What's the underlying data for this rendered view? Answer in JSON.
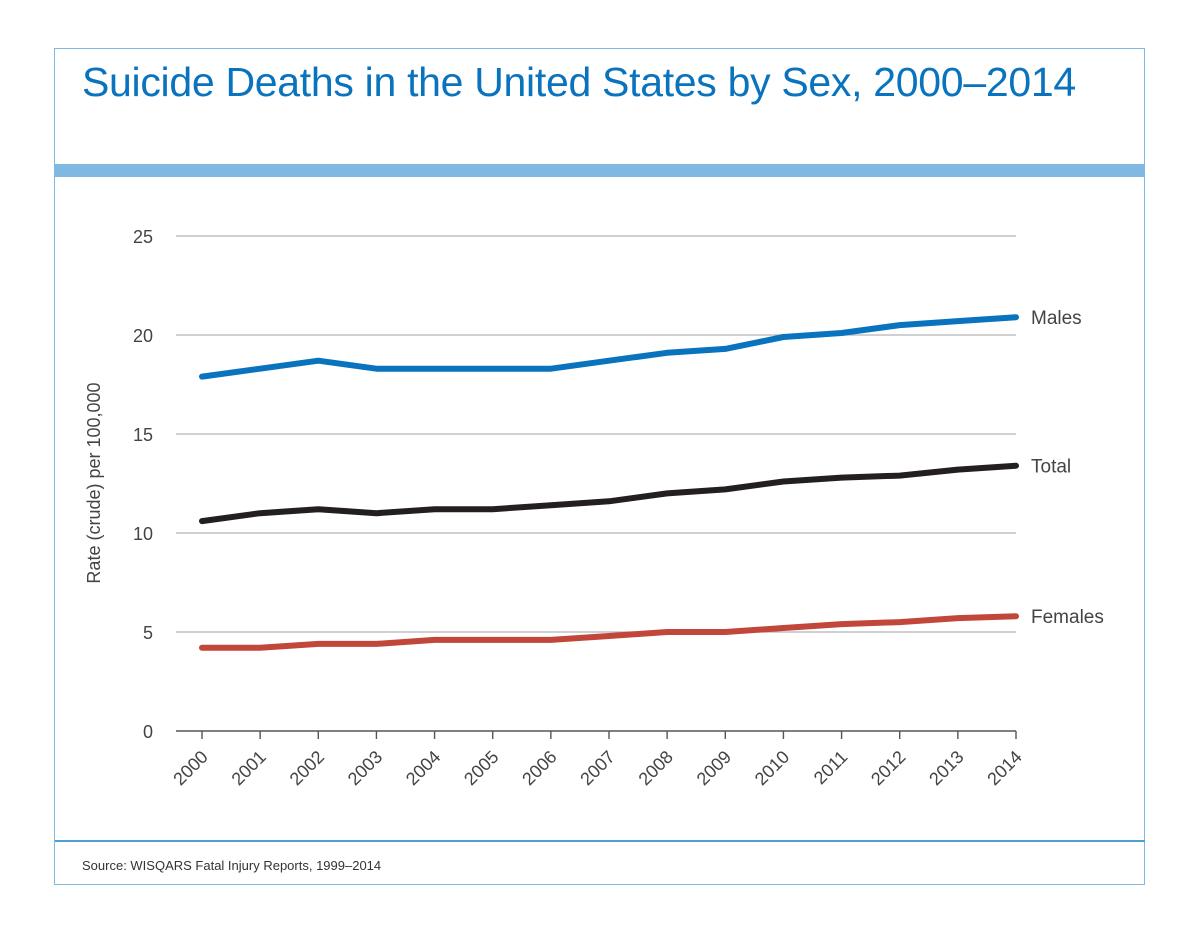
{
  "title": "Suicide Deaths in the United States by Sex, 2000–2014",
  "source": "Source: WISQARS Fatal Injury Reports, 1999–2014",
  "colors": {
    "title": "#0a73be",
    "band": "#7fb8e0",
    "males": "#0a73be",
    "total": "#231f20",
    "females": "#c0473a",
    "grid": "#b5b5b5"
  },
  "chart_data": {
    "type": "line",
    "title": "Suicide Deaths in the United States by Sex, 2000–2014",
    "xlabel": "",
    "ylabel": "Rate (crude) per 100,000",
    "ylim": [
      0,
      25
    ],
    "yticks": [
      0,
      5,
      10,
      15,
      20,
      25
    ],
    "grid": true,
    "legend": "inline-right",
    "x": [
      "2000",
      "2001",
      "2002",
      "2003",
      "2004",
      "2005",
      "2006",
      "2007",
      "2008",
      "2009",
      "2010",
      "2011",
      "2012",
      "2013",
      "2014"
    ],
    "series": [
      {
        "name": "Males",
        "color": "#0a73be",
        "values": [
          17.9,
          18.3,
          18.7,
          18.3,
          18.3,
          18.3,
          18.3,
          18.7,
          19.1,
          19.3,
          19.9,
          20.1,
          20.5,
          20.7,
          20.9
        ]
      },
      {
        "name": "Total",
        "color": "#231f20",
        "values": [
          10.6,
          11.0,
          11.2,
          11.0,
          11.2,
          11.2,
          11.4,
          11.6,
          12.0,
          12.2,
          12.6,
          12.8,
          12.9,
          13.2,
          13.4
        ]
      },
      {
        "name": "Females",
        "color": "#c0473a",
        "values": [
          4.2,
          4.2,
          4.4,
          4.4,
          4.6,
          4.6,
          4.6,
          4.8,
          5.0,
          5.0,
          5.2,
          5.4,
          5.5,
          5.7,
          5.8
        ]
      }
    ]
  }
}
